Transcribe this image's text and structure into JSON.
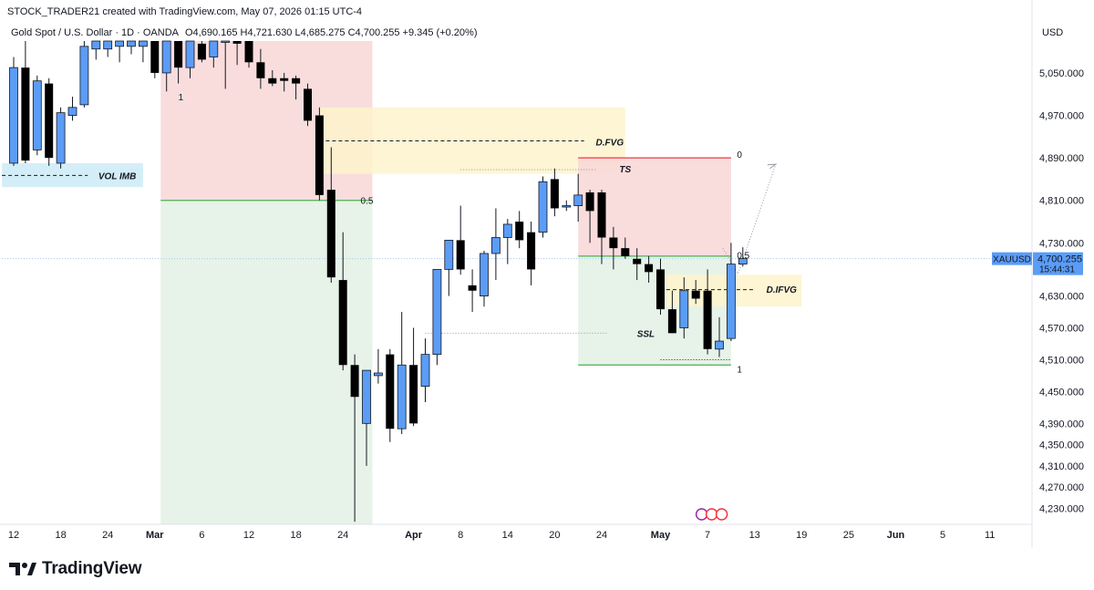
{
  "attribution": "STOCK_TRADER21 created with TradingView.com, May 07, 2026 01:15 UTC-4",
  "legend": {
    "symbol": "Gold Spot / U.S. Dollar · 1D · OANDA",
    "ohlc": "O4,690.165  H4,721.630  L4,685.275  C4,700.255  +9.345 (+0.20%)"
  },
  "currency": "USD",
  "branding": "TradingView",
  "price_tag": {
    "symbol": "XAUUSD",
    "price": "4,700.255",
    "countdown": "15:44:31"
  },
  "colors": {
    "up": "#5b9cf6",
    "down": "#000000",
    "red_zone": "#f8d7d7",
    "green_zone": "#e3f1e4",
    "yellow_zone": "#fdf3cd",
    "blue_zone": "#cdebf6",
    "tag": "#5b9cf6"
  },
  "chart_data": {
    "type": "candlestick",
    "instrument": "XAUUSD",
    "timeframe": "1D",
    "ylim": [
      4200,
      5110
    ],
    "y_ticks": [
      4230,
      4270,
      4310,
      4350,
      4390,
      4450,
      4510,
      4570,
      4630,
      4730,
      4810,
      4890,
      4970,
      5050
    ],
    "y_tick_labels": [
      "4,230.000",
      "4,270.000",
      "4,310.000",
      "4,350.000",
      "4,390.000",
      "4,450.000",
      "4,510.000",
      "4,570.000",
      "4,630.000",
      "4,730.000",
      "4,810.000",
      "4,890.000",
      "4,970.000",
      "5,050.000"
    ],
    "x_ticks": [
      {
        "label": "12",
        "bar": 0
      },
      {
        "label": "18",
        "bar": 4
      },
      {
        "label": "24",
        "bar": 8
      },
      {
        "label": "Mar",
        "bar": 12
      },
      {
        "label": "6",
        "bar": 16
      },
      {
        "label": "12",
        "bar": 20
      },
      {
        "label": "18",
        "bar": 24
      },
      {
        "label": "24",
        "bar": 28
      },
      {
        "label": "Apr",
        "bar": 34
      },
      {
        "label": "8",
        "bar": 38
      },
      {
        "label": "14",
        "bar": 42
      },
      {
        "label": "20",
        "bar": 46
      },
      {
        "label": "24",
        "bar": 50
      },
      {
        "label": "May",
        "bar": 55
      },
      {
        "label": "7",
        "bar": 59
      },
      {
        "label": "13",
        "bar": 63
      },
      {
        "label": "19",
        "bar": 67
      },
      {
        "label": "25",
        "bar": 71
      },
      {
        "label": "Jun",
        "bar": 75
      },
      {
        "label": "5",
        "bar": 79
      },
      {
        "label": "11",
        "bar": 83
      }
    ],
    "candles": [
      {
        "o": 4880,
        "h": 5080,
        "l": 4875,
        "c": 5060
      },
      {
        "o": 5060,
        "h": 5110,
        "l": 4880,
        "c": 4885
      },
      {
        "o": 4905,
        "h": 5045,
        "l": 4895,
        "c": 5035
      },
      {
        "o": 5030,
        "h": 5040,
        "l": 4875,
        "c": 4890
      },
      {
        "o": 4880,
        "h": 4985,
        "l": 4870,
        "c": 4975
      },
      {
        "o": 4970,
        "h": 5005,
        "l": 4960,
        "c": 4985
      },
      {
        "o": 4990,
        "h": 5110,
        "l": 4985,
        "c": 5100
      },
      {
        "o": 5095,
        "h": 5110,
        "l": 5075,
        "c": 5110
      },
      {
        "o": 5095,
        "h": 5110,
        "l": 5080,
        "c": 5110
      },
      {
        "o": 5100,
        "h": 5110,
        "l": 5070,
        "c": 5110
      },
      {
        "o": 5100,
        "h": 5110,
        "l": 5085,
        "c": 5110
      },
      {
        "o": 5100,
        "h": 5110,
        "l": 5070,
        "c": 5110
      },
      {
        "o": 5110,
        "h": 5110,
        "l": 5040,
        "c": 5050
      },
      {
        "o": 5050,
        "h": 5110,
        "l": 5015,
        "c": 5110
      },
      {
        "o": 5110,
        "h": 5110,
        "l": 5030,
        "c": 5060
      },
      {
        "o": 5060,
        "h": 5110,
        "l": 5040,
        "c": 5110
      },
      {
        "o": 5105,
        "h": 5110,
        "l": 5070,
        "c": 5075
      },
      {
        "o": 5080,
        "h": 5110,
        "l": 5060,
        "c": 5110
      },
      {
        "o": 5110,
        "h": 5110,
        "l": 5020,
        "c": 5110
      },
      {
        "o": 5110,
        "h": 5110,
        "l": 5065,
        "c": 5105
      },
      {
        "o": 5110,
        "h": 5110,
        "l": 5060,
        "c": 5070
      },
      {
        "o": 5070,
        "h": 5095,
        "l": 5020,
        "c": 5040
      },
      {
        "o": 5040,
        "h": 5055,
        "l": 5025,
        "c": 5030
      },
      {
        "o": 5040,
        "h": 5050,
        "l": 5015,
        "c": 5035
      },
      {
        "o": 5040,
        "h": 5045,
        "l": 5000,
        "c": 5030
      },
      {
        "o": 5020,
        "h": 5030,
        "l": 4950,
        "c": 4960
      },
      {
        "o": 4970,
        "h": 4985,
        "l": 4810,
        "c": 4820
      },
      {
        "o": 4830,
        "h": 4910,
        "l": 4655,
        "c": 4665
      },
      {
        "o": 4660,
        "h": 4750,
        "l": 4490,
        "c": 4500
      },
      {
        "o": 4500,
        "h": 4520,
        "l": 4205,
        "c": 4440
      },
      {
        "o": 4390,
        "h": 4490,
        "l": 4310,
        "c": 4490
      },
      {
        "o": 4480,
        "h": 4530,
        "l": 4465,
        "c": 4485
      },
      {
        "o": 4520,
        "h": 4530,
        "l": 4355,
        "c": 4380
      },
      {
        "o": 4380,
        "h": 4600,
        "l": 4370,
        "c": 4500
      },
      {
        "o": 4500,
        "h": 4570,
        "l": 4385,
        "c": 4390
      },
      {
        "o": 4460,
        "h": 4550,
        "l": 4430,
        "c": 4520
      },
      {
        "o": 4520,
        "h": 4680,
        "l": 4500,
        "c": 4680
      },
      {
        "o": 4680,
        "h": 4730,
        "l": 4630,
        "c": 4735
      },
      {
        "o": 4735,
        "h": 4800,
        "l": 4670,
        "c": 4680
      },
      {
        "o": 4650,
        "h": 4680,
        "l": 4600,
        "c": 4640
      },
      {
        "o": 4630,
        "h": 4715,
        "l": 4610,
        "c": 4710
      },
      {
        "o": 4710,
        "h": 4795,
        "l": 4660,
        "c": 4740
      },
      {
        "o": 4740,
        "h": 4775,
        "l": 4690,
        "c": 4765
      },
      {
        "o": 4770,
        "h": 4790,
        "l": 4720,
        "c": 4735
      },
      {
        "o": 4750,
        "h": 4770,
        "l": 4650,
        "c": 4680
      },
      {
        "o": 4750,
        "h": 4855,
        "l": 4740,
        "c": 4845
      },
      {
        "o": 4850,
        "h": 4870,
        "l": 4780,
        "c": 4795
      },
      {
        "o": 4800,
        "h": 4810,
        "l": 4790,
        "c": 4800
      },
      {
        "o": 4800,
        "h": 4860,
        "l": 4770,
        "c": 4820
      },
      {
        "o": 4825,
        "h": 4830,
        "l": 4730,
        "c": 4790
      },
      {
        "o": 4825,
        "h": 4830,
        "l": 4690,
        "c": 4740
      },
      {
        "o": 4740,
        "h": 4760,
        "l": 4680,
        "c": 4720
      },
      {
        "o": 4720,
        "h": 4740,
        "l": 4700,
        "c": 4705
      },
      {
        "o": 4700,
        "h": 4720,
        "l": 4660,
        "c": 4690
      },
      {
        "o": 4690,
        "h": 4705,
        "l": 4655,
        "c": 4675
      },
      {
        "o": 4680,
        "h": 4700,
        "l": 4595,
        "c": 4605
      },
      {
        "o": 4605,
        "h": 4640,
        "l": 4560,
        "c": 4560
      },
      {
        "o": 4570,
        "h": 4665,
        "l": 4550,
        "c": 4640
      },
      {
        "o": 4640,
        "h": 4660,
        "l": 4615,
        "c": 4625
      },
      {
        "o": 4640,
        "h": 4680,
        "l": 4520,
        "c": 4530
      },
      {
        "o": 4530,
        "h": 4590,
        "l": 4515,
        "c": 4545
      },
      {
        "o": 4550,
        "h": 4730,
        "l": 4545,
        "c": 4690
      },
      {
        "o": 4690,
        "h": 4721.63,
        "l": 4685.275,
        "c": 4700.255
      }
    ],
    "candle_offset": -60,
    "annotations": {
      "zones": [
        {
          "name": "premium-zone",
          "color": "red",
          "x0": 12.5,
          "x1": 30.5,
          "y0": 4810,
          "y1": 5110
        },
        {
          "name": "discount-zone",
          "color": "green",
          "x0": 12.5,
          "x1": 30.5,
          "y0": 4200,
          "y1": 4810
        },
        {
          "name": "dfvg-zone",
          "color": "yellow",
          "x0": 26,
          "x1": 52,
          "y0": 4860,
          "y1": 4985
        },
        {
          "name": "vol-imb-zone",
          "color": "blue",
          "x0": -1,
          "x1": 11,
          "y0": 4835,
          "y1": 4880
        },
        {
          "name": "range-red",
          "color": "red",
          "x0": 48,
          "x1": 61,
          "y0": 4705,
          "y1": 4890
        },
        {
          "name": "range-green",
          "color": "green",
          "x0": 48,
          "x1": 61,
          "y0": 4500,
          "y1": 4705
        },
        {
          "name": "difvg-zone",
          "color": "yellow",
          "x0": 55.5,
          "x1": 67,
          "y0": 4610,
          "y1": 4670
        }
      ],
      "labels": [
        {
          "text": "VOL IMB",
          "bar": 7.2,
          "price": 4857
        },
        {
          "text": "D.FVG",
          "bar": 49.5,
          "price": 4920
        },
        {
          "text": "TS",
          "bar": 51.5,
          "price": 4870
        },
        {
          "text": "SSL",
          "bar": 53,
          "price": 4560
        },
        {
          "text": "D.IFVG",
          "bar": 64,
          "price": 4643
        },
        {
          "text": "1",
          "bar": 14,
          "price": 5005
        },
        {
          "text": "0.5",
          "bar": 29.5,
          "price": 4810
        },
        {
          "text": "0",
          "bar": 61.5,
          "price": 4897
        },
        {
          "text": "0.5",
          "bar": 61.5,
          "price": 4707
        },
        {
          "text": "1",
          "bar": 61.5,
          "price": 4493
        }
      ]
    }
  }
}
